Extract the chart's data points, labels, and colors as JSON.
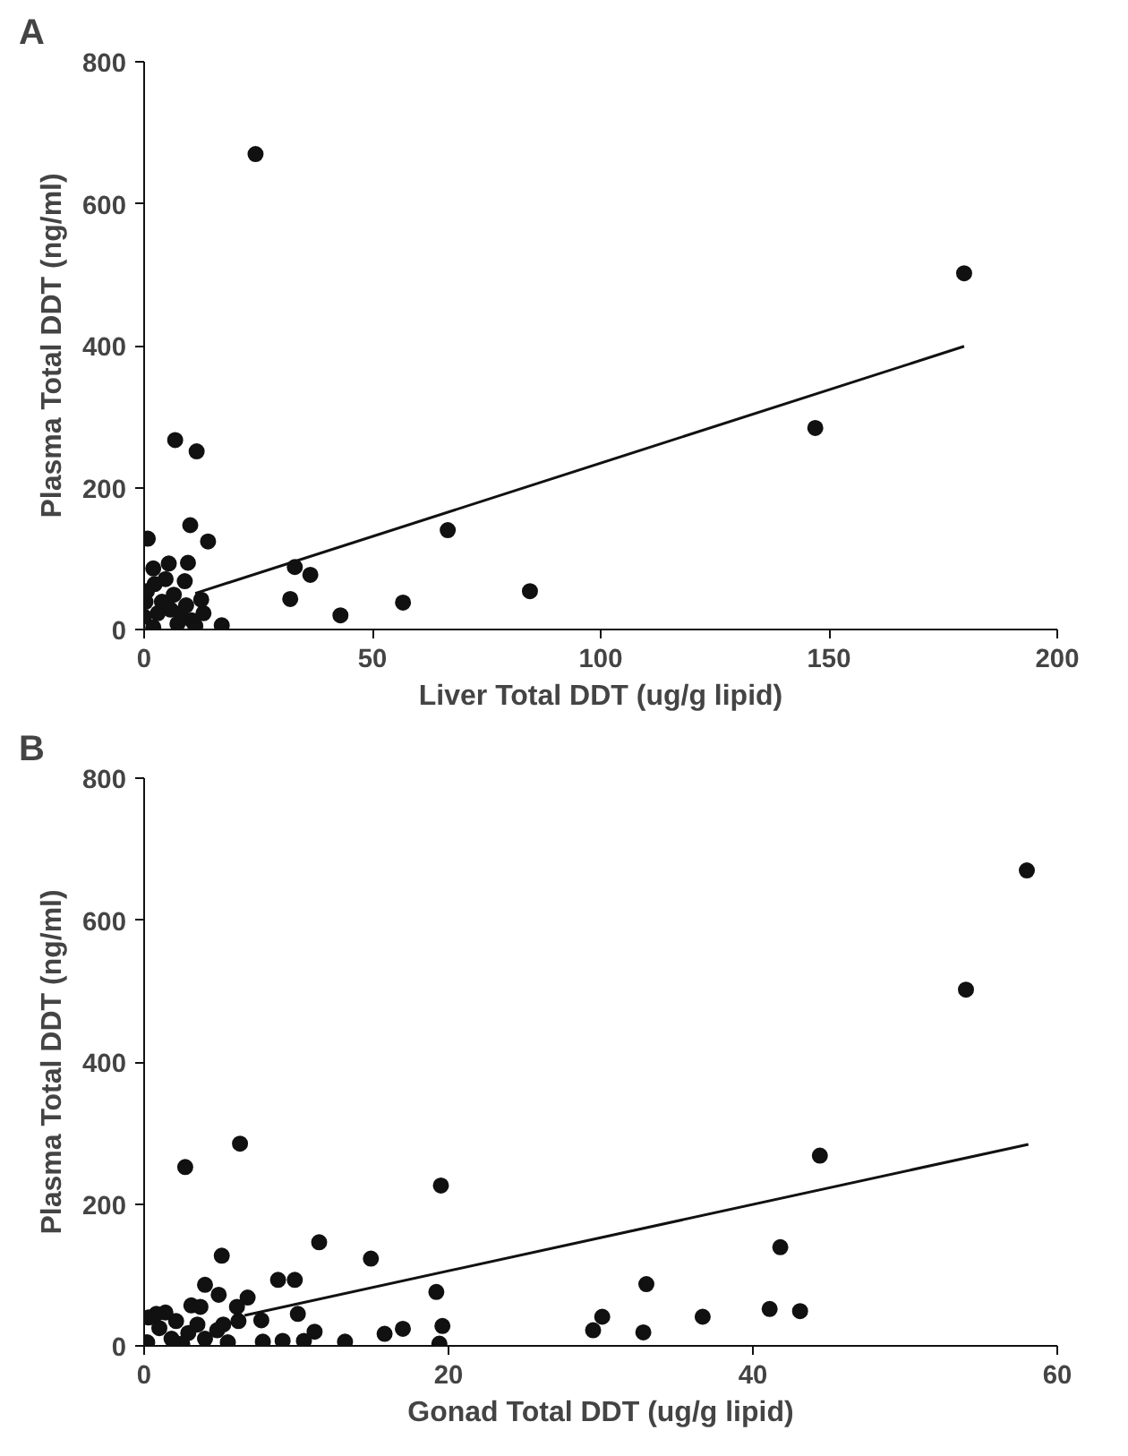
{
  "chart_data": [
    {
      "type": "scatter",
      "title": "A",
      "xlabel": "Liver Total DDT (ug/g lipid)",
      "ylabel": "Plasma Total DDT (ng/ml)",
      "xlim": [
        0,
        200
      ],
      "ylim": [
        0,
        800
      ],
      "xticks": [
        0,
        50,
        100,
        150,
        200
      ],
      "yticks": [
        0,
        200,
        400,
        600,
        800
      ],
      "grid": false,
      "series": [
        {
          "color": "#111111",
          "marker": "circle",
          "x": [
            24.4,
            179.6,
            147,
            66.5,
            84.5,
            56.7,
            43,
            32,
            33,
            36.4,
            17,
            6.8,
            11.5,
            10.1,
            14,
            0.8,
            2,
            5.4,
            9.6,
            4.7,
            8.9,
            12.5,
            13,
            2.3,
            0,
            0.3,
            2,
            3,
            3.9,
            5.8,
            6.5,
            7.3,
            8,
            9.2,
            10.4,
            11.2,
            0.6
          ],
          "values": [
            670,
            502,
            284,
            140,
            54,
            38,
            20,
            43,
            88,
            77,
            6,
            267,
            251,
            147,
            124,
            128,
            86,
            93,
            94,
            71,
            68,
            42,
            23,
            64,
            18,
            39,
            3,
            23,
            39,
            28,
            49,
            8,
            23,
            34,
            13,
            5,
            54
          ]
        },
        {
          "type": "line",
          "color": "#111111",
          "x": [
            11.2,
            179.6
          ],
          "values": [
            51,
            399
          ]
        }
      ]
    },
    {
      "type": "scatter",
      "title": "B",
      "xlabel": "Gonad Total DDT (ug/g lipid)",
      "ylabel": "Plasma Total DDT (ng/ml)",
      "xlim": [
        0,
        60
      ],
      "ylim": [
        0,
        800
      ],
      "xticks": [
        0,
        20,
        40,
        60
      ],
      "yticks": [
        0,
        200,
        400,
        600,
        800
      ],
      "grid": false,
      "series": [
        {
          "color": "#111111",
          "marker": "circle",
          "x": [
            58,
            54,
            6.3,
            2.7,
            19.5,
            11.5,
            14.9,
            5.1,
            8.8,
            9.9,
            19.2,
            4.0,
            4.9,
            6.8,
            10.1,
            7.7,
            11.2,
            13.2,
            15.8,
            17.0,
            19.6,
            19.4,
            10.5,
            9.1,
            7.8,
            6.2,
            6.1,
            1.4,
            2.1,
            3.1,
            3.7,
            4.8,
            2.9,
            1.8,
            4.0,
            5.5,
            3.5,
            5.2,
            2.5,
            0.3,
            0.2,
            1,
            0.8,
            44.4,
            41.8,
            33.0,
            30.1,
            29.5,
            32.8,
            36.7,
            41.1,
            43.1
          ],
          "values": [
            670,
            502,
            285,
            252,
            226,
            146,
            123,
            127,
            93,
            93,
            76,
            86,
            72,
            68,
            45,
            36,
            20,
            6,
            17,
            24,
            28,
            3,
            7,
            7,
            6,
            35,
            55,
            47,
            35,
            57,
            55,
            22,
            18,
            10,
            10,
            5,
            30,
            30,
            3,
            40,
            5,
            25,
            45,
            268,
            139,
            87,
            41,
            22,
            19,
            41,
            52,
            49
          ]
        },
        {
          "type": "line",
          "color": "#111111",
          "x": [
            6.6,
            58.1
          ],
          "values": [
            43,
            284
          ]
        }
      ]
    }
  ]
}
